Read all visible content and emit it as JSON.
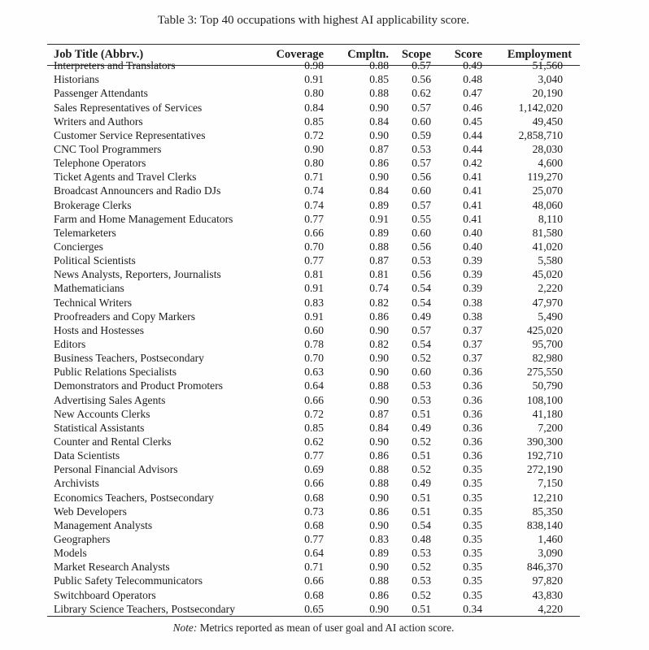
{
  "caption": "Table 3: Top 40 occupations with highest AI applicability score.",
  "table": {
    "columns": [
      {
        "label": "Job Title (Abbrv.)",
        "align": "left"
      },
      {
        "label": "Coverage",
        "align": "right"
      },
      {
        "label": "Cmpltn.",
        "align": "right"
      },
      {
        "label": "Scope",
        "align": "right"
      },
      {
        "label": "Score",
        "align": "right"
      },
      {
        "label": "Employment",
        "align": "right"
      }
    ],
    "rows": [
      [
        "Interpreters and Translators",
        "0.98",
        "0.88",
        "0.57",
        "0.49",
        "51,560"
      ],
      [
        "Historians",
        "0.91",
        "0.85",
        "0.56",
        "0.48",
        "3,040"
      ],
      [
        "Passenger Attendants",
        "0.80",
        "0.88",
        "0.62",
        "0.47",
        "20,190"
      ],
      [
        "Sales Representatives of Services",
        "0.84",
        "0.90",
        "0.57",
        "0.46",
        "1,142,020"
      ],
      [
        "Writers and Authors",
        "0.85",
        "0.84",
        "0.60",
        "0.45",
        "49,450"
      ],
      [
        "Customer Service Representatives",
        "0.72",
        "0.90",
        "0.59",
        "0.44",
        "2,858,710"
      ],
      [
        "CNC Tool Programmers",
        "0.90",
        "0.87",
        "0.53",
        "0.44",
        "28,030"
      ],
      [
        "Telephone Operators",
        "0.80",
        "0.86",
        "0.57",
        "0.42",
        "4,600"
      ],
      [
        "Ticket Agents and Travel Clerks",
        "0.71",
        "0.90",
        "0.56",
        "0.41",
        "119,270"
      ],
      [
        "Broadcast Announcers and Radio DJs",
        "0.74",
        "0.84",
        "0.60",
        "0.41",
        "25,070"
      ],
      [
        "Brokerage Clerks",
        "0.74",
        "0.89",
        "0.57",
        "0.41",
        "48,060"
      ],
      [
        "Farm and Home Management Educators",
        "0.77",
        "0.91",
        "0.55",
        "0.41",
        "8,110"
      ],
      [
        "Telemarketers",
        "0.66",
        "0.89",
        "0.60",
        "0.40",
        "81,580"
      ],
      [
        "Concierges",
        "0.70",
        "0.88",
        "0.56",
        "0.40",
        "41,020"
      ],
      [
        "Political Scientists",
        "0.77",
        "0.87",
        "0.53",
        "0.39",
        "5,580"
      ],
      [
        "News Analysts, Reporters, Journalists",
        "0.81",
        "0.81",
        "0.56",
        "0.39",
        "45,020"
      ],
      [
        "Mathematicians",
        "0.91",
        "0.74",
        "0.54",
        "0.39",
        "2,220"
      ],
      [
        "Technical Writers",
        "0.83",
        "0.82",
        "0.54",
        "0.38",
        "47,970"
      ],
      [
        "Proofreaders and Copy Markers",
        "0.91",
        "0.86",
        "0.49",
        "0.38",
        "5,490"
      ],
      [
        "Hosts and Hostesses",
        "0.60",
        "0.90",
        "0.57",
        "0.37",
        "425,020"
      ],
      [
        "Editors",
        "0.78",
        "0.82",
        "0.54",
        "0.37",
        "95,700"
      ],
      [
        "Business Teachers, Postsecondary",
        "0.70",
        "0.90",
        "0.52",
        "0.37",
        "82,980"
      ],
      [
        "Public Relations Specialists",
        "0.63",
        "0.90",
        "0.60",
        "0.36",
        "275,550"
      ],
      [
        "Demonstrators and Product Promoters",
        "0.64",
        "0.88",
        "0.53",
        "0.36",
        "50,790"
      ],
      [
        "Advertising Sales Agents",
        "0.66",
        "0.90",
        "0.53",
        "0.36",
        "108,100"
      ],
      [
        "New Accounts Clerks",
        "0.72",
        "0.87",
        "0.51",
        "0.36",
        "41,180"
      ],
      [
        "Statistical Assistants",
        "0.85",
        "0.84",
        "0.49",
        "0.36",
        "7,200"
      ],
      [
        "Counter and Rental Clerks",
        "0.62",
        "0.90",
        "0.52",
        "0.36",
        "390,300"
      ],
      [
        "Data Scientists",
        "0.77",
        "0.86",
        "0.51",
        "0.36",
        "192,710"
      ],
      [
        "Personal Financial Advisors",
        "0.69",
        "0.88",
        "0.52",
        "0.35",
        "272,190"
      ],
      [
        "Archivists",
        "0.66",
        "0.88",
        "0.49",
        "0.35",
        "7,150"
      ],
      [
        "Economics Teachers, Postsecondary",
        "0.68",
        "0.90",
        "0.51",
        "0.35",
        "12,210"
      ],
      [
        "Web Developers",
        "0.73",
        "0.86",
        "0.51",
        "0.35",
        "85,350"
      ],
      [
        "Management Analysts",
        "0.68",
        "0.90",
        "0.54",
        "0.35",
        "838,140"
      ],
      [
        "Geographers",
        "0.77",
        "0.83",
        "0.48",
        "0.35",
        "1,460"
      ],
      [
        "Models",
        "0.64",
        "0.89",
        "0.53",
        "0.35",
        "3,090"
      ],
      [
        "Market Research Analysts",
        "0.71",
        "0.90",
        "0.52",
        "0.35",
        "846,370"
      ],
      [
        "Public Safety Telecommunicators",
        "0.66",
        "0.88",
        "0.53",
        "0.35",
        "97,820"
      ],
      [
        "Switchboard Operators",
        "0.68",
        "0.86",
        "0.52",
        "0.35",
        "43,830"
      ],
      [
        "Library Science Teachers, Postsecondary",
        "0.65",
        "0.90",
        "0.51",
        "0.34",
        "4,220"
      ]
    ]
  },
  "note": {
    "label": "Note:",
    "text": "Metrics reported as mean of user goal and AI action score."
  },
  "colors": {
    "background": "#fefefe",
    "text": "#1b1b1b",
    "rule": "#2e2e2e"
  }
}
